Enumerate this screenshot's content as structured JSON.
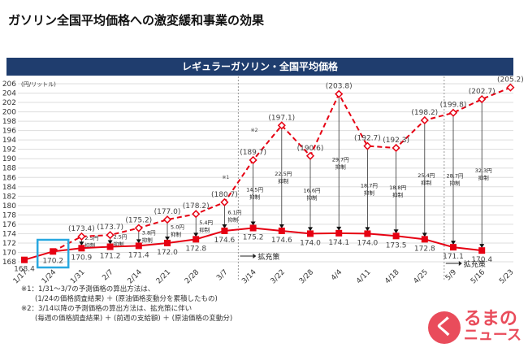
{
  "header": {
    "title": "ガソリン全国平均価格への激変緩和事業の効果"
  },
  "chart_data": {
    "type": "line",
    "title": "レギュラーガソリン・全国平均価格",
    "ylabel": "(円/リットル)",
    "ylim": [
      168,
      206
    ],
    "ytick_step": 2,
    "grid": true,
    "categories": [
      "1/17",
      "1/24",
      "1/31",
      "2/7",
      "2/14",
      "2/21",
      "2/28",
      "3/7",
      "3/14",
      "3/22",
      "3/28",
      "4/4",
      "4/11",
      "4/18",
      "4/25",
      "5/9",
      "5/16",
      "5/23"
    ],
    "series": [
      {
        "style": "solid",
        "color": "#e60012",
        "values": [
          168.4,
          170.2,
          170.9,
          171.2,
          171.4,
          172.0,
          172.8,
          174.6,
          175.2,
          174.6,
          174.0,
          174.1,
          174.0,
          173.5,
          172.8,
          171.1,
          170.4,
          null
        ]
      },
      {
        "style": "dashed",
        "color": "#e60012",
        "values": [
          null,
          170.2,
          173.4,
          173.7,
          175.2,
          177.0,
          178.2,
          180.7,
          189.7,
          197.1,
          190.6,
          203.8,
          192.7,
          192.3,
          198.2,
          199.8,
          202.7,
          205.2
        ]
      }
    ],
    "suppression": [
      null,
      null,
      "2.5円",
      "2.5円",
      "3.8円",
      "5.0円",
      "5.4円",
      "6.1円",
      "14.5円",
      "22.5円",
      "16.6円",
      "29.7円",
      "18.7円",
      "18.8円",
      "25.4円",
      "28.7円",
      "32.3円",
      null
    ],
    "suppression_suffix": "抑制",
    "markers": {
      "3/7": "※1",
      "3/14": "※2"
    },
    "highlight": "1/24",
    "dividers": [
      {
        "after": "3/7",
        "label": "拡充策"
      },
      {
        "after": "4/25",
        "label": "拡充策"
      }
    ]
  },
  "notes": [
    "※1：1/31～3/7の予測価格の算出方法は、",
    "　　(1/24の価格調査結果) ＋ (原油価格変動分を累積したもの)",
    "※2：3/14以降の予測価格の算出方法は、拡充策に伴い",
    "　　(毎週の価格調査結果) ＋ (前週の支給額) ＋ (原油価格の変動分)"
  ],
  "logo": {
    "mark": "く",
    "line1": "るまの",
    "line2": "ニュース"
  }
}
